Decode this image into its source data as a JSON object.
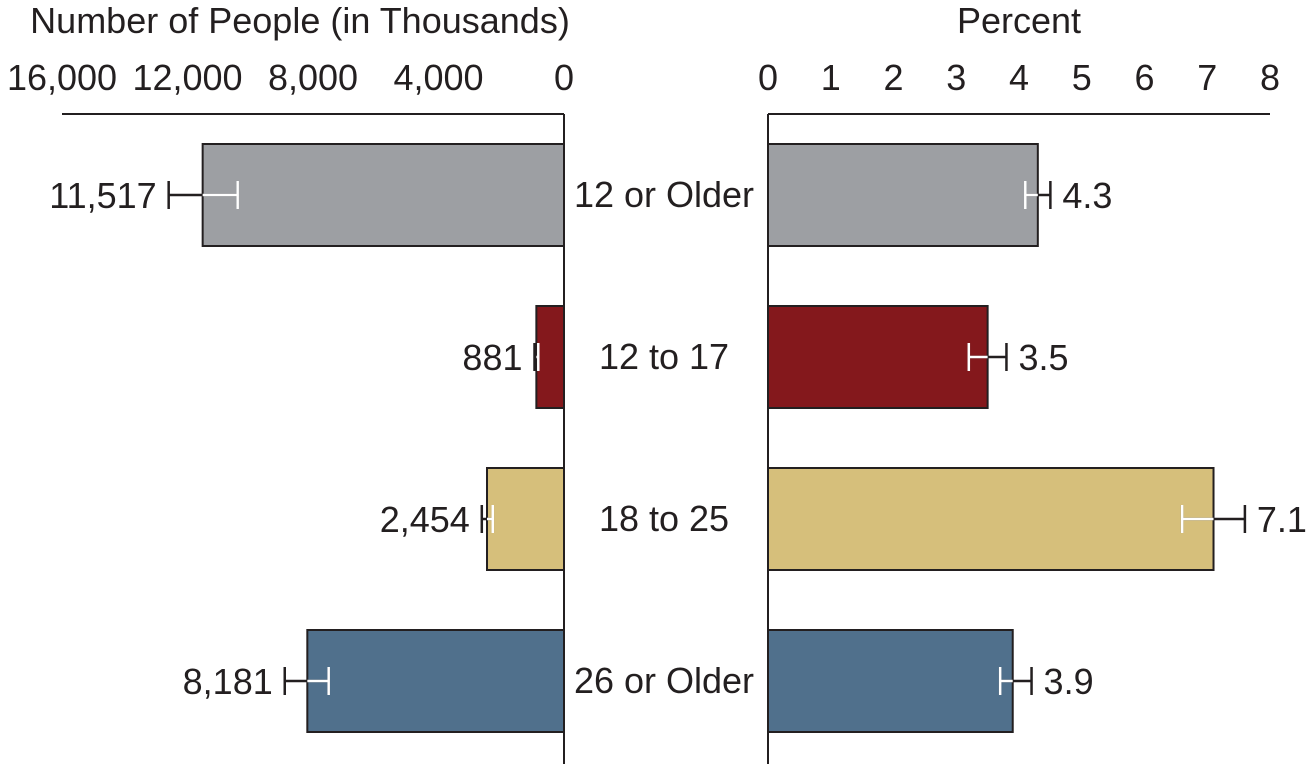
{
  "chart_data": {
    "type": "bar",
    "categories": [
      "12 or Older",
      "12 to 17",
      "18 to 25",
      "26 or Older"
    ],
    "colors": [
      "#9d9fa3",
      "#84181c",
      "#d6bf7b",
      "#50708c"
    ],
    "left_panel": {
      "title": "Number of People (in Thousands)",
      "tick_labels": [
        "16,000",
        "12,000",
        "8,000",
        "4,000",
        "0"
      ],
      "tick_values": [
        16000,
        12000,
        8000,
        4000,
        0
      ],
      "xlim": [
        0,
        16000
      ],
      "direction": "reversed",
      "values": [
        11517,
        881,
        2454,
        8181
      ],
      "value_labels": [
        "11,517",
        "881",
        "2,454",
        "8,181"
      ],
      "error_bars": [
        [
          10400,
          12600
        ],
        [
          820,
          940
        ],
        [
          2270,
          2620
        ],
        [
          7500,
          8900
        ]
      ]
    },
    "right_panel": {
      "title": "Percent",
      "tick_labels": [
        "0",
        "1",
        "2",
        "3",
        "4",
        "5",
        "6",
        "7",
        "8"
      ],
      "tick_values": [
        0,
        1,
        2,
        3,
        4,
        5,
        6,
        7,
        8
      ],
      "xlim": [
        0,
        8
      ],
      "values": [
        4.3,
        3.5,
        7.1,
        3.9
      ],
      "value_labels": [
        "4.3",
        "3.5",
        "7.1",
        "3.9"
      ],
      "error_bars": [
        [
          4.1,
          4.5
        ],
        [
          3.2,
          3.8
        ],
        [
          6.6,
          7.6
        ],
        [
          3.7,
          4.2
        ]
      ]
    }
  }
}
